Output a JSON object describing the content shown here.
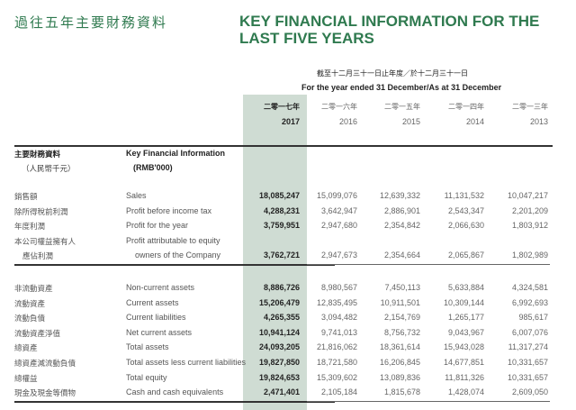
{
  "title": {
    "zh": "過往五年主要財務資料",
    "en": "KEY FINANCIAL INFORMATION FOR THE LAST FIVE YEARS"
  },
  "period": {
    "zh": "截至十二月三十一日止年度／於十二月三十一日",
    "en": "For the year ended 31 December/As at 31 December"
  },
  "years": [
    {
      "zh": "二零一七年",
      "en": "2017"
    },
    {
      "zh": "二零一六年",
      "en": "2016"
    },
    {
      "zh": "二零一五年",
      "en": "2015"
    },
    {
      "zh": "二零一四年",
      "en": "2014"
    },
    {
      "zh": "二零一三年",
      "en": "2013"
    }
  ],
  "section_header": {
    "zh": "主要財務資料",
    "zh_unit": "（人民幣千元）",
    "en": "Key Financial Information",
    "en_unit": "(RMB'000)"
  },
  "colors": {
    "accent": "#2f7a4f",
    "highlight": "#cfdcd3"
  },
  "groups": [
    [
      {
        "zh": "銷售額",
        "en": "Sales",
        "values": [
          "18,085,247",
          "15,099,076",
          "12,639,332",
          "11,131,532",
          "10,047,217"
        ]
      },
      {
        "zh": "除所得稅前利潤",
        "en": "Profit before income tax",
        "values": [
          "4,288,231",
          "3,642,947",
          "2,886,901",
          "2,543,347",
          "2,201,209"
        ]
      },
      {
        "zh": "年度利潤",
        "en": "Profit for the year",
        "values": [
          "3,759,951",
          "2,947,680",
          "2,354,842",
          "2,066,630",
          "1,803,912"
        ]
      },
      {
        "zh": "本公司權益擁有人",
        "en": "Profit attributable to equity",
        "values": []
      },
      {
        "zh": "應佔利潤",
        "en": "owners of the Company",
        "indent": true,
        "values": [
          "3,762,721",
          "2,947,673",
          "2,354,664",
          "2,065,867",
          "1,802,989"
        ]
      }
    ],
    [
      {
        "zh": "非流動資產",
        "en": "Non-current assets",
        "values": [
          "8,886,726",
          "8,980,567",
          "7,450,113",
          "5,633,884",
          "4,324,581"
        ]
      },
      {
        "zh": "流動資產",
        "en": "Current assets",
        "values": [
          "15,206,479",
          "12,835,495",
          "10,911,501",
          "10,309,144",
          "6,992,693"
        ]
      },
      {
        "zh": "流動負債",
        "en": "Current liabilities",
        "values": [
          "4,265,355",
          "3,094,482",
          "2,154,769",
          "1,265,177",
          "985,617"
        ]
      },
      {
        "zh": "流動資產淨值",
        "en": "Net current assets",
        "values": [
          "10,941,124",
          "9,741,013",
          "8,756,732",
          "9,043,967",
          "6,007,076"
        ]
      },
      {
        "zh": "總資產",
        "en": "Total assets",
        "values": [
          "24,093,205",
          "21,816,062",
          "18,361,614",
          "15,943,028",
          "11,317,274"
        ]
      },
      {
        "zh": "總資產減流動負債",
        "en": "Total assets less current liabilities",
        "values": [
          "19,827,850",
          "18,721,580",
          "16,206,845",
          "14,677,851",
          "10,331,657"
        ]
      },
      {
        "zh": "總權益",
        "en": "Total equity",
        "values": [
          "19,824,653",
          "15,309,602",
          "13,089,836",
          "11,811,326",
          "10,331,657"
        ]
      },
      {
        "zh": "現金及現金等價物",
        "en": "Cash and cash equivalents",
        "values": [
          "2,471,401",
          "2,105,184",
          "1,815,678",
          "1,428,074",
          "2,609,050"
        ]
      }
    ]
  ]
}
